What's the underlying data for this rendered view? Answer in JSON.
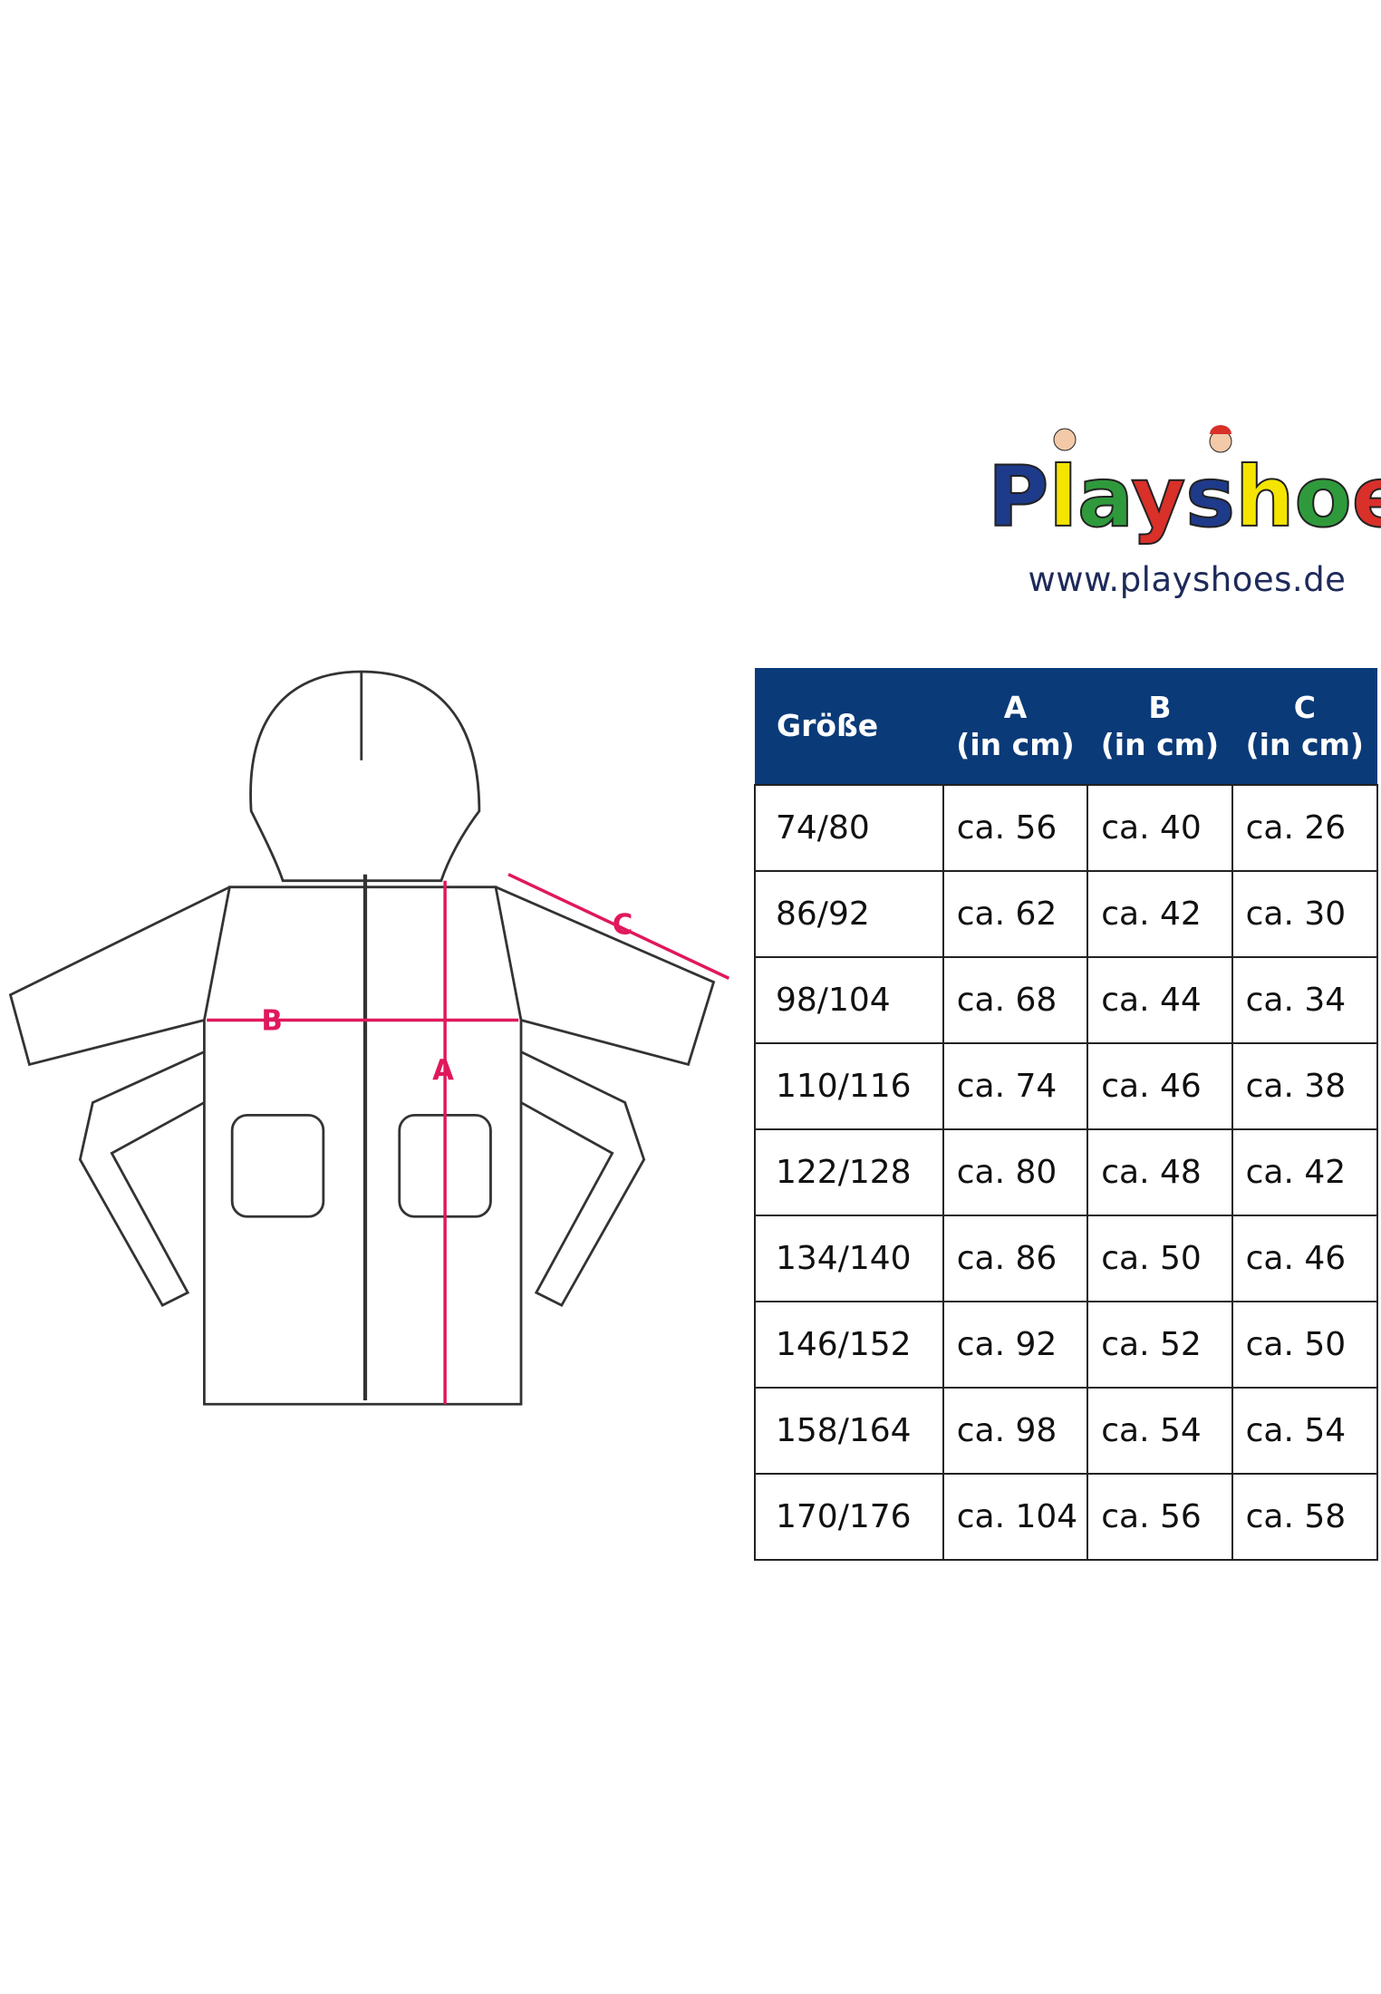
{
  "brand": {
    "name": "Playshoes",
    "url": "www.playshoes.de",
    "logo_colors": [
      "#1e3a8a",
      "#2f9a3c",
      "#d9302a",
      "#f4e400"
    ]
  },
  "diagram": {
    "labels": {
      "a": "A",
      "b": "B",
      "c": "C"
    },
    "arrow_color": "#e0185c"
  },
  "table": {
    "header_color": "#0a3a78",
    "headers": [
      {
        "line1": "Größe",
        "line2": ""
      },
      {
        "line1": "A",
        "line2": "(in cm)"
      },
      {
        "line1": "B",
        "line2": "(in cm)"
      },
      {
        "line1": "C",
        "line2": "(in cm)"
      }
    ],
    "rows": [
      [
        "74/80",
        "ca. 56",
        "ca. 40",
        "ca. 26"
      ],
      [
        "86/92",
        "ca. 62",
        "ca. 42",
        "ca. 30"
      ],
      [
        "98/104",
        "ca. 68",
        "ca. 44",
        "ca. 34"
      ],
      [
        "110/116",
        "ca. 74",
        "ca. 46",
        "ca. 38"
      ],
      [
        "122/128",
        "ca. 80",
        "ca. 48",
        "ca. 42"
      ],
      [
        "134/140",
        "ca. 86",
        "ca. 50",
        "ca. 46"
      ],
      [
        "146/152",
        "ca. 92",
        "ca. 52",
        "ca. 50"
      ],
      [
        "158/164",
        "ca. 98",
        "ca. 54",
        "ca. 54"
      ],
      [
        "170/176",
        "ca. 104",
        "ca. 56",
        "ca. 58"
      ]
    ]
  }
}
